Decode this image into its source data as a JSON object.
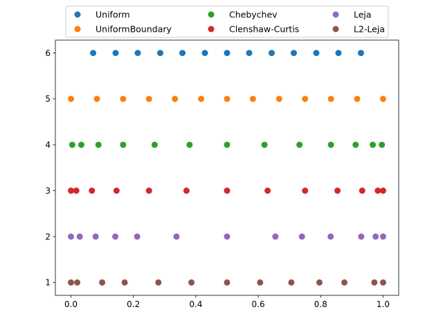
{
  "chart_data": {
    "type": "scatter",
    "title": "",
    "xlabel": "",
    "ylabel": "",
    "xlim": [
      -0.05,
      1.05
    ],
    "ylim": [
      0.72,
      6.28
    ],
    "xticks": [
      0.0,
      0.2,
      0.4,
      0.6,
      0.8,
      1.0
    ],
    "xtick_labels": [
      "0.0",
      "0.2",
      "0.4",
      "0.6",
      "0.8",
      "1.0"
    ],
    "yticks": [
      1,
      2,
      3,
      4,
      5,
      6
    ],
    "ytick_labels": [
      "1",
      "2",
      "3",
      "4",
      "5",
      "6"
    ],
    "grid": false,
    "legend": {
      "position": "top-center",
      "columns": 3
    },
    "series": [
      {
        "name": "Uniform",
        "color": "#1f77b4",
        "y": 6,
        "x": [
          0.071,
          0.143,
          0.214,
          0.286,
          0.357,
          0.429,
          0.5,
          0.571,
          0.643,
          0.714,
          0.786,
          0.857,
          0.929
        ]
      },
      {
        "name": "UniformBoundary",
        "color": "#ff7f0e",
        "y": 5,
        "x": [
          0.0,
          0.083,
          0.167,
          0.25,
          0.333,
          0.417,
          0.5,
          0.583,
          0.667,
          0.75,
          0.833,
          0.917,
          1.0
        ]
      },
      {
        "name": "Chebychev",
        "color": "#2ca02c",
        "y": 4,
        "x": [
          0.004,
          0.033,
          0.088,
          0.167,
          0.268,
          0.38,
          0.5,
          0.62,
          0.732,
          0.833,
          0.912,
          0.967,
          0.996
        ]
      },
      {
        "name": "Clenshaw-Curtis",
        "color": "#d62728",
        "y": 3,
        "x": [
          0.0,
          0.017,
          0.067,
          0.146,
          0.25,
          0.37,
          0.5,
          0.63,
          0.75,
          0.854,
          0.933,
          0.983,
          1.0
        ]
      },
      {
        "name": "Leja",
        "color": "#9467bd",
        "y": 2,
        "x": [
          0.0,
          0.028,
          0.079,
          0.142,
          0.212,
          0.338,
          0.5,
          0.655,
          0.74,
          0.832,
          0.93,
          0.976,
          1.0
        ]
      },
      {
        "name": "L2-Leja",
        "color": "#8c564b",
        "y": 1,
        "x": [
          0.0,
          0.02,
          0.1,
          0.172,
          0.28,
          0.386,
          0.5,
          0.606,
          0.706,
          0.796,
          0.876,
          0.972,
          1.0
        ]
      }
    ]
  }
}
